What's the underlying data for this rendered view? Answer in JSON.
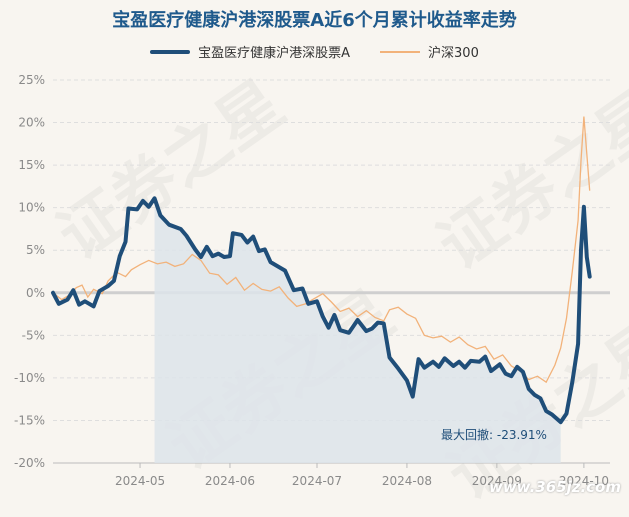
{
  "title": "宝盈医疗健康沪港深股票A近6个月累计收益率走势",
  "legend": {
    "main": "宝盈医疗健康沪港深股票A",
    "bench": "沪深300"
  },
  "watermark": "证券之星",
  "source": "www.365jz.com",
  "chart_data": {
    "type": "line",
    "title": "宝盈医疗健康沪港深股票A近6个月累计收益率走势",
    "xlabel": "",
    "ylabel": "",
    "ylim": [
      -20,
      25
    ],
    "yticks": [
      25,
      20,
      15,
      10,
      5,
      0,
      -5,
      -10,
      -15,
      -20
    ],
    "ytick_labels": [
      "25%",
      "20%",
      "15%",
      "10%",
      "5%",
      "0%",
      "-5%",
      "-10%",
      "-15%",
      "-20%"
    ],
    "xlim": [
      "2024-04-01",
      "2024-10-10"
    ],
    "xticks": [
      "2024-05-01",
      "2024-06-01",
      "2024-07-01",
      "2024-08-01",
      "2024-09-01",
      "2024-10-01"
    ],
    "xtick_labels": [
      "2024-05",
      "2024-06",
      "2024-07",
      "2024-08",
      "2024-09",
      "2024-10"
    ],
    "grid": "horizontal",
    "legend_position": "top",
    "colors": {
      "main": "#1f4e79",
      "bench": "#f2b27a",
      "drawdown_fill": "#dde4ea",
      "zero_line": "#cfcfcf"
    },
    "series": [
      {
        "name": "宝盈医疗健康沪港深股票A",
        "points": [
          [
            "2024-04-01",
            0
          ],
          [
            "2024-04-03",
            -1.3
          ],
          [
            "2024-04-06",
            -0.8
          ],
          [
            "2024-04-08",
            0.3
          ],
          [
            "2024-04-10",
            -1.4
          ],
          [
            "2024-04-12",
            -1.0
          ],
          [
            "2024-04-15",
            -1.6
          ],
          [
            "2024-04-17",
            0.2
          ],
          [
            "2024-04-20",
            0.8
          ],
          [
            "2024-04-22",
            1.4
          ],
          [
            "2024-04-24",
            4.3
          ],
          [
            "2024-04-26",
            6.0
          ],
          [
            "2024-04-27",
            9.9
          ],
          [
            "2024-04-30",
            9.8
          ],
          [
            "2024-05-02",
            10.8
          ],
          [
            "2024-05-04",
            10.1
          ],
          [
            "2024-05-06",
            11.1
          ],
          [
            "2024-05-08",
            9.1
          ],
          [
            "2024-05-11",
            8.0
          ],
          [
            "2024-05-15",
            7.5
          ],
          [
            "2024-05-17",
            6.7
          ],
          [
            "2024-05-20",
            5.1
          ],
          [
            "2024-05-22",
            4.2
          ],
          [
            "2024-05-24",
            5.4
          ],
          [
            "2024-05-26",
            4.3
          ],
          [
            "2024-05-28",
            4.6
          ],
          [
            "2024-05-30",
            4.2
          ],
          [
            "2024-06-01",
            4.3
          ],
          [
            "2024-06-02",
            7.0
          ],
          [
            "2024-06-05",
            6.8
          ],
          [
            "2024-06-07",
            5.9
          ],
          [
            "2024-06-09",
            6.6
          ],
          [
            "2024-06-11",
            4.9
          ],
          [
            "2024-06-13",
            5.1
          ],
          [
            "2024-06-15",
            3.6
          ],
          [
            "2024-06-18",
            3.0
          ],
          [
            "2024-06-20",
            2.6
          ],
          [
            "2024-06-23",
            0.3
          ],
          [
            "2024-06-26",
            0.5
          ],
          [
            "2024-06-28",
            -1.3
          ],
          [
            "2024-07-01",
            -1.0
          ],
          [
            "2024-07-03",
            -2.8
          ],
          [
            "2024-07-05",
            -4.1
          ],
          [
            "2024-07-07",
            -2.6
          ],
          [
            "2024-07-09",
            -4.4
          ],
          [
            "2024-07-12",
            -4.7
          ],
          [
            "2024-07-15",
            -3.2
          ],
          [
            "2024-07-18",
            -4.5
          ],
          [
            "2024-07-20",
            -4.2
          ],
          [
            "2024-07-22",
            -3.5
          ],
          [
            "2024-07-24",
            -3.6
          ],
          [
            "2024-07-26",
            -7.6
          ],
          [
            "2024-07-29",
            -8.9
          ],
          [
            "2024-08-01",
            -10.3
          ],
          [
            "2024-08-03",
            -12.2
          ],
          [
            "2024-08-05",
            -7.8
          ],
          [
            "2024-08-07",
            -8.8
          ],
          [
            "2024-08-10",
            -8.1
          ],
          [
            "2024-08-12",
            -8.7
          ],
          [
            "2024-08-14",
            -7.7
          ],
          [
            "2024-08-17",
            -8.6
          ],
          [
            "2024-08-19",
            -8.1
          ],
          [
            "2024-08-21",
            -8.8
          ],
          [
            "2024-08-23",
            -8.0
          ],
          [
            "2024-08-26",
            -8.1
          ],
          [
            "2024-08-28",
            -7.5
          ],
          [
            "2024-08-30",
            -9.2
          ],
          [
            "2024-09-02",
            -8.4
          ],
          [
            "2024-09-04",
            -9.5
          ],
          [
            "2024-09-06",
            -9.8
          ],
          [
            "2024-09-08",
            -8.7
          ],
          [
            "2024-09-10",
            -9.3
          ],
          [
            "2024-09-12",
            -11.3
          ],
          [
            "2024-09-14",
            -12.0
          ],
          [
            "2024-09-16",
            -12.4
          ],
          [
            "2024-09-18",
            -13.9
          ],
          [
            "2024-09-20",
            -14.3
          ],
          [
            "2024-09-23",
            -15.2
          ],
          [
            "2024-09-25",
            -14.2
          ],
          [
            "2024-09-27",
            -10.5
          ],
          [
            "2024-09-29",
            -6.0
          ],
          [
            "2024-09-30",
            5.0
          ],
          [
            "2024-10-01",
            10.1
          ],
          [
            "2024-10-02",
            4.2
          ],
          [
            "2024-10-03",
            1.9
          ]
        ]
      },
      {
        "name": "沪深300",
        "points": [
          [
            "2024-04-01",
            0
          ],
          [
            "2024-04-04",
            -0.8
          ],
          [
            "2024-04-07",
            -0.2
          ],
          [
            "2024-04-09",
            0.6
          ],
          [
            "2024-04-11",
            0.9
          ],
          [
            "2024-04-13",
            -0.5
          ],
          [
            "2024-04-15",
            0.4
          ],
          [
            "2024-04-18",
            -0.1
          ],
          [
            "2024-04-20",
            1.4
          ],
          [
            "2024-04-23",
            2.4
          ],
          [
            "2024-04-26",
            1.9
          ],
          [
            "2024-04-28",
            2.7
          ],
          [
            "2024-05-01",
            3.3
          ],
          [
            "2024-05-04",
            3.8
          ],
          [
            "2024-05-07",
            3.4
          ],
          [
            "2024-05-10",
            3.6
          ],
          [
            "2024-05-13",
            3.1
          ],
          [
            "2024-05-16",
            3.4
          ],
          [
            "2024-05-19",
            4.5
          ],
          [
            "2024-05-22",
            3.8
          ],
          [
            "2024-05-25",
            2.3
          ],
          [
            "2024-05-28",
            2.1
          ],
          [
            "2024-05-31",
            1.0
          ],
          [
            "2024-06-03",
            1.8
          ],
          [
            "2024-06-06",
            0.3
          ],
          [
            "2024-06-09",
            1.1
          ],
          [
            "2024-06-12",
            0.4
          ],
          [
            "2024-06-15",
            0.2
          ],
          [
            "2024-06-18",
            0.7
          ],
          [
            "2024-06-21",
            -0.6
          ],
          [
            "2024-06-24",
            -1.6
          ],
          [
            "2024-06-27",
            -1.3
          ],
          [
            "2024-06-30",
            -0.7
          ],
          [
            "2024-07-03",
            -0.1
          ],
          [
            "2024-07-06",
            -1.1
          ],
          [
            "2024-07-09",
            -2.2
          ],
          [
            "2024-07-12",
            -1.8
          ],
          [
            "2024-07-15",
            -2.8
          ],
          [
            "2024-07-18",
            -2.1
          ],
          [
            "2024-07-21",
            -2.9
          ],
          [
            "2024-07-24",
            -3.3
          ],
          [
            "2024-07-26",
            -2.0
          ],
          [
            "2024-07-29",
            -1.7
          ],
          [
            "2024-08-01",
            -2.5
          ],
          [
            "2024-08-04",
            -3.0
          ],
          [
            "2024-08-07",
            -5.0
          ],
          [
            "2024-08-10",
            -5.3
          ],
          [
            "2024-08-13",
            -5.1
          ],
          [
            "2024-08-16",
            -5.8
          ],
          [
            "2024-08-19",
            -5.2
          ],
          [
            "2024-08-22",
            -6.1
          ],
          [
            "2024-08-25",
            -6.6
          ],
          [
            "2024-08-28",
            -6.3
          ],
          [
            "2024-08-31",
            -7.8
          ],
          [
            "2024-09-03",
            -7.3
          ],
          [
            "2024-09-06",
            -8.6
          ],
          [
            "2024-09-09",
            -9.2
          ],
          [
            "2024-09-12",
            -10.2
          ],
          [
            "2024-09-15",
            -9.8
          ],
          [
            "2024-09-18",
            -10.5
          ],
          [
            "2024-09-21",
            -8.5
          ],
          [
            "2024-09-23",
            -6.5
          ],
          [
            "2024-09-25",
            -3.0
          ],
          [
            "2024-09-27",
            2.5
          ],
          [
            "2024-09-29",
            8.5
          ],
          [
            "2024-09-30",
            15.5
          ],
          [
            "2024-10-01",
            20.7
          ],
          [
            "2024-10-03",
            12.0
          ]
        ]
      }
    ],
    "max_drawdown": {
      "label": "最大回撤: -23.91%",
      "start": "2024-05-06",
      "end": "2024-09-23"
    }
  }
}
